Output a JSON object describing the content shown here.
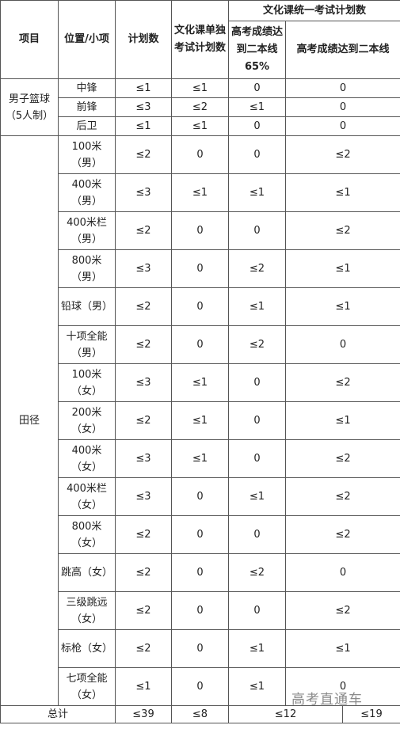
{
  "headers": {
    "project": "项目",
    "position": "位置/小项",
    "plan": "计划数",
    "culture_single": "文化课单独考试计划数",
    "culture_unified": "文化课统一考试计划数",
    "gaokao65": "高考成绩达到二本线65%",
    "gaokao_line": "高考成绩达到二本线"
  },
  "groups": [
    {
      "name": "男子篮球（5人制）",
      "rows": [
        {
          "position": "中锋",
          "plan": "≤1",
          "single": "≤1",
          "p65": "0",
          "line": "0"
        },
        {
          "position": "前锋",
          "plan": "≤3",
          "single": "≤2",
          "p65": "≤1",
          "line": "0"
        },
        {
          "position": "后卫",
          "plan": "≤1",
          "single": "≤1",
          "p65": "0",
          "line": "0"
        }
      ]
    },
    {
      "name": "田径",
      "rows": [
        {
          "position": "100米（男）",
          "plan": "≤2",
          "single": "0",
          "p65": "0",
          "line": "≤2"
        },
        {
          "position": "400米（男）",
          "plan": "≤3",
          "single": "≤1",
          "p65": "≤1",
          "line": "≤1"
        },
        {
          "position": "400米栏（男）",
          "plan": "≤2",
          "single": "0",
          "p65": "0",
          "line": "≤2"
        },
        {
          "position": "800米（男）",
          "plan": "≤3",
          "single": "0",
          "p65": "≤2",
          "line": "≤1"
        },
        {
          "position": "铅球（男）",
          "plan": "≤2",
          "single": "0",
          "p65": "≤1",
          "line": "≤1"
        },
        {
          "position": "十项全能（男）",
          "plan": "≤2",
          "single": "0",
          "p65": "≤2",
          "line": "0"
        },
        {
          "position": "100米（女）",
          "plan": "≤3",
          "single": "≤1",
          "p65": "0",
          "line": "≤2"
        },
        {
          "position": "200米（女）",
          "plan": "≤2",
          "single": "≤1",
          "p65": "0",
          "line": "≤1"
        },
        {
          "position": "400米（女）",
          "plan": "≤3",
          "single": "≤1",
          "p65": "0",
          "line": "≤2"
        },
        {
          "position": "400米栏（女）",
          "plan": "≤3",
          "single": "0",
          "p65": "≤1",
          "line": "≤2"
        },
        {
          "position": "800米（女）",
          "plan": "≤2",
          "single": "0",
          "p65": "0",
          "line": "≤2"
        },
        {
          "position": "跳高（女）",
          "plan": "≤2",
          "single": "0",
          "p65": "≤2",
          "line": "0"
        },
        {
          "position": "三级跳远（女）",
          "plan": "≤2",
          "single": "0",
          "p65": "0",
          "line": "≤2"
        },
        {
          "position": "标枪（女）",
          "plan": "≤2",
          "single": "0",
          "p65": "≤1",
          "line": "≤1"
        },
        {
          "position": "七项全能（女）",
          "plan": "≤1",
          "single": "0",
          "p65": "≤1",
          "line": "0"
        }
      ]
    }
  ],
  "total": {
    "label": "总计",
    "plan": "≤39",
    "single": "≤8",
    "unified": "≤12",
    "line": "≤19"
  },
  "watermark": "高考直通车"
}
